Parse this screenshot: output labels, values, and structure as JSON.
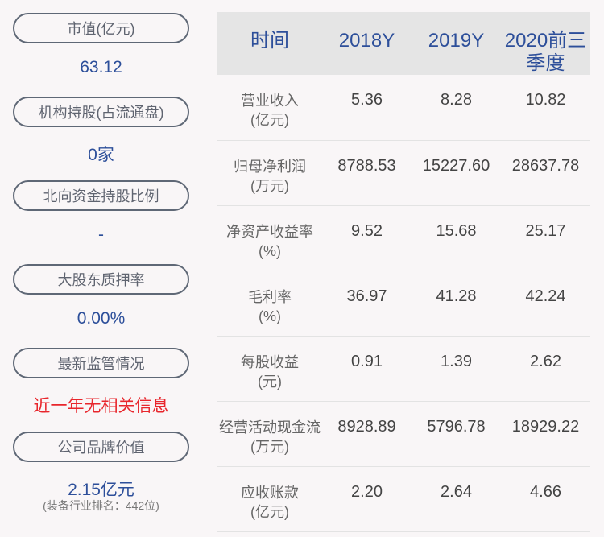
{
  "left": [
    {
      "label": "市值(亿元)",
      "value": "63.12"
    },
    {
      "label": "机构持股(占流通盘)",
      "value": "0家"
    },
    {
      "label": "北向资金持股比例",
      "value": "-"
    },
    {
      "label": "大股东质押率",
      "value": "0.00%"
    },
    {
      "label": "最新监管情况",
      "value": "近一年无相关信息"
    },
    {
      "label": "公司品牌价值",
      "value": "2.15亿元",
      "note": "(装备行业排名：442位)"
    }
  ],
  "table": {
    "headers": [
      "时间",
      "2018Y",
      "2019Y",
      "2020前三季度"
    ],
    "rows": [
      {
        "name": "营业收入",
        "unit": "(亿元)",
        "values": [
          "5.36",
          "8.28",
          "10.82"
        ]
      },
      {
        "name": "归母净利润",
        "unit": "(万元)",
        "values": [
          "8788.53",
          "15227.60",
          "28637.78"
        ]
      },
      {
        "name": "净资产收益率",
        "unit": "(%)",
        "values": [
          "9.52",
          "15.68",
          "25.17"
        ]
      },
      {
        "name": "毛利率",
        "unit": "(%)",
        "values": [
          "36.97",
          "41.28",
          "42.24"
        ]
      },
      {
        "name": "每股收益",
        "unit": "(元)",
        "values": [
          "0.91",
          "1.39",
          "2.62"
        ]
      },
      {
        "name": "经营活动现金流",
        "unit": "(万元)",
        "values": [
          "8928.89",
          "5796.78",
          "18929.22"
        ]
      },
      {
        "name": "应收账款",
        "unit": "(亿元)",
        "values": [
          "2.20",
          "2.64",
          "4.66"
        ]
      }
    ]
  },
  "colors": {
    "accent": "#2d4f9a",
    "alert": "#e8262c"
  }
}
